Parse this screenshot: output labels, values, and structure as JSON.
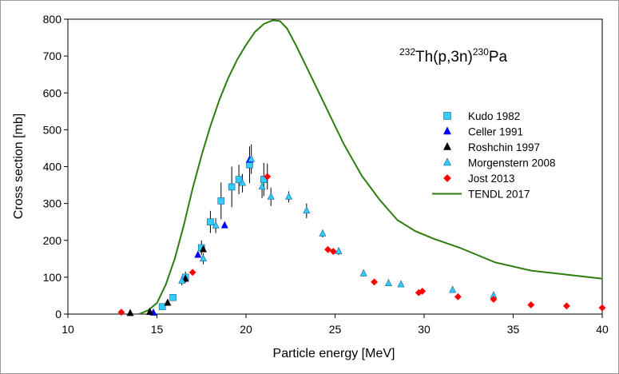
{
  "chart_data": {
    "type": "scatter",
    "title": "",
    "annotation": {
      "mass_target": "232",
      "target": "Th(p,3n)",
      "mass_product": "230",
      "product": "Pa"
    },
    "xlabel": "Particle energy [MeV]",
    "ylabel": "Cross section [mb]",
    "xlim": [
      10,
      40
    ],
    "ylim": [
      0,
      800
    ],
    "x_ticks": [
      10,
      15,
      20,
      25,
      30,
      35,
      40
    ],
    "y_ticks": [
      0,
      100,
      200,
      300,
      400,
      500,
      600,
      700,
      800
    ],
    "legend_position": "right-center",
    "series": [
      {
        "name": "Kudo 1982",
        "marker": "square",
        "color": "#33ccff",
        "points": [
          {
            "x": 15.3,
            "y": 20,
            "err": 0
          },
          {
            "x": 15.9,
            "y": 45,
            "err": 0
          },
          {
            "x": 16.6,
            "y": 100,
            "err": 15
          },
          {
            "x": 17.5,
            "y": 180,
            "err": 20
          },
          {
            "x": 18.0,
            "y": 250,
            "err": 30
          },
          {
            "x": 18.6,
            "y": 307,
            "err": 50
          },
          {
            "x": 19.2,
            "y": 345,
            "err": 55
          },
          {
            "x": 19.6,
            "y": 365,
            "err": 40
          },
          {
            "x": 20.2,
            "y": 405,
            "err": 50
          },
          {
            "x": 21.0,
            "y": 365,
            "err": 45
          }
        ]
      },
      {
        "name": "Celler 1991",
        "marker": "triangle",
        "color": "#0000ff",
        "points": [
          {
            "x": 14.8,
            "y": 3,
            "err": 0
          },
          {
            "x": 17.3,
            "y": 160,
            "err": 0
          },
          {
            "x": 18.8,
            "y": 240,
            "err": 0
          },
          {
            "x": 20.2,
            "y": 418,
            "err": 0
          }
        ]
      },
      {
        "name": "Roshchin 1997",
        "marker": "triangle",
        "color": "#000000",
        "points": [
          {
            "x": 13.5,
            "y": 2,
            "err": 0
          },
          {
            "x": 14.6,
            "y": 5,
            "err": 0
          },
          {
            "x": 15.6,
            "y": 30,
            "err": 0
          },
          {
            "x": 16.6,
            "y": 95,
            "err": 0
          },
          {
            "x": 17.6,
            "y": 175,
            "err": 0
          }
        ]
      },
      {
        "name": "Morgenstern 2008",
        "marker": "triangle",
        "color": "#33ccff",
        "points": [
          {
            "x": 16.4,
            "y": 90,
            "err": 12
          },
          {
            "x": 17.6,
            "y": 150,
            "err": 15
          },
          {
            "x": 18.3,
            "y": 240,
            "err": 20
          },
          {
            "x": 19.8,
            "y": 355,
            "err": 25
          },
          {
            "x": 20.3,
            "y": 420,
            "err": 40
          },
          {
            "x": 20.9,
            "y": 345,
            "err": 30
          },
          {
            "x": 21.4,
            "y": 318,
            "err": 25
          },
          {
            "x": 22.4,
            "y": 318,
            "err": 15
          },
          {
            "x": 23.4,
            "y": 280,
            "err": 20
          },
          {
            "x": 24.3,
            "y": 218,
            "err": 10
          },
          {
            "x": 25.2,
            "y": 170,
            "err": 10
          },
          {
            "x": 26.6,
            "y": 110,
            "err": 8
          },
          {
            "x": 28.0,
            "y": 83,
            "err": 6
          },
          {
            "x": 28.7,
            "y": 80,
            "err": 6
          },
          {
            "x": 31.6,
            "y": 65,
            "err": 5
          },
          {
            "x": 33.9,
            "y": 50,
            "err": 5
          }
        ]
      },
      {
        "name": "Jost 2013",
        "marker": "diamond",
        "color": "#ff0000",
        "points": [
          {
            "x": 13.0,
            "y": 5,
            "err": 0
          },
          {
            "x": 17.0,
            "y": 113,
            "err": 0
          },
          {
            "x": 21.2,
            "y": 373,
            "err": 35
          },
          {
            "x": 24.6,
            "y": 175,
            "err": 0
          },
          {
            "x": 24.9,
            "y": 170,
            "err": 0
          },
          {
            "x": 27.2,
            "y": 87,
            "err": 0
          },
          {
            "x": 29.7,
            "y": 58,
            "err": 0
          },
          {
            "x": 29.9,
            "y": 62,
            "err": 0
          },
          {
            "x": 31.9,
            "y": 47,
            "err": 0
          },
          {
            "x": 33.9,
            "y": 40,
            "err": 0
          },
          {
            "x": 36.0,
            "y": 25,
            "err": 0
          },
          {
            "x": 38.0,
            "y": 22,
            "err": 0
          },
          {
            "x": 40.0,
            "y": 17,
            "err": 0
          }
        ]
      },
      {
        "name": "TENDL 2017",
        "marker": "line",
        "color": "#2e7d0f",
        "points": [
          {
            "x": 14.0,
            "y": 0
          },
          {
            "x": 14.5,
            "y": 10
          },
          {
            "x": 15.0,
            "y": 30
          },
          {
            "x": 15.5,
            "y": 80
          },
          {
            "x": 16.0,
            "y": 150
          },
          {
            "x": 16.5,
            "y": 240
          },
          {
            "x": 17.0,
            "y": 340
          },
          {
            "x": 17.5,
            "y": 430
          },
          {
            "x": 18.0,
            "y": 510
          },
          {
            "x": 18.5,
            "y": 580
          },
          {
            "x": 19.0,
            "y": 640
          },
          {
            "x": 19.5,
            "y": 690
          },
          {
            "x": 20.0,
            "y": 730
          },
          {
            "x": 20.5,
            "y": 765
          },
          {
            "x": 21.0,
            "y": 787
          },
          {
            "x": 21.5,
            "y": 797
          },
          {
            "x": 21.9,
            "y": 795
          },
          {
            "x": 22.3,
            "y": 775
          },
          {
            "x": 22.8,
            "y": 730
          },
          {
            "x": 23.5,
            "y": 660
          },
          {
            "x": 24.5,
            "y": 560
          },
          {
            "x": 25.5,
            "y": 460
          },
          {
            "x": 26.5,
            "y": 375
          },
          {
            "x": 27.5,
            "y": 310
          },
          {
            "x": 28.5,
            "y": 255
          },
          {
            "x": 29.5,
            "y": 225
          },
          {
            "x": 30.5,
            "y": 205
          },
          {
            "x": 32.0,
            "y": 180
          },
          {
            "x": 34.0,
            "y": 140
          },
          {
            "x": 36.0,
            "y": 118
          },
          {
            "x": 38.0,
            "y": 107
          },
          {
            "x": 40.0,
            "y": 96
          }
        ]
      }
    ]
  }
}
